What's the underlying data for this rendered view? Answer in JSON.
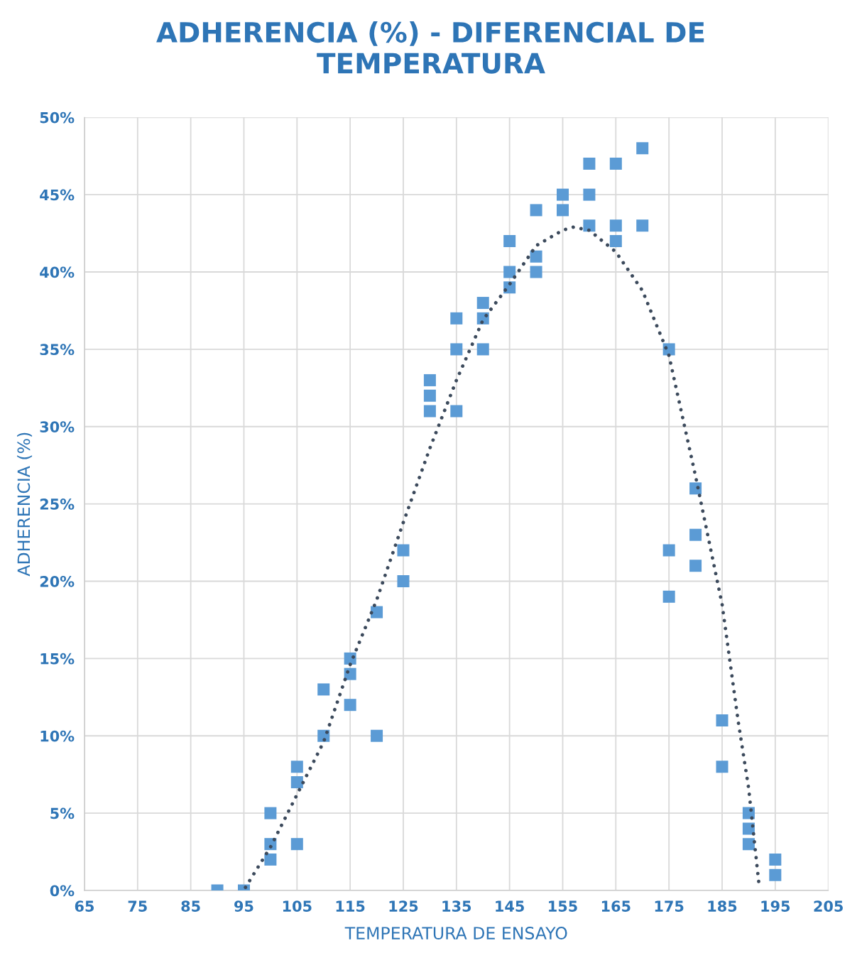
{
  "chart_data": {
    "type": "scatter",
    "title": "ADHERENCIA (%) - DIFERENCIAL DE\nTEMPERATURA",
    "xlabel": "TEMPERATURA DE ENSAYO",
    "ylabel": "ADHERENCIA (%)",
    "xlim": [
      65,
      205
    ],
    "xticks": [
      65,
      75,
      85,
      95,
      105,
      115,
      125,
      135,
      145,
      155,
      165,
      175,
      185,
      195,
      205
    ],
    "ylim": [
      0,
      50
    ],
    "yticks": [
      {
        "value": 0,
        "label": "0%"
      },
      {
        "value": 5,
        "label": "5%"
      },
      {
        "value": 10,
        "label": "10%"
      },
      {
        "value": 15,
        "label": "15%"
      },
      {
        "value": 20,
        "label": "20%"
      },
      {
        "value": 25,
        "label": "25%"
      },
      {
        "value": 30,
        "label": "30%"
      },
      {
        "value": 35,
        "label": "35%"
      },
      {
        "value": 40,
        "label": "40%"
      },
      {
        "value": 45,
        "label": "45%"
      },
      {
        "value": 50,
        "label": "50%"
      }
    ],
    "grid": true,
    "marker": "square",
    "series": [
      {
        "color": "#5b9bd5",
        "x": [
          90,
          95,
          100,
          100,
          100,
          105,
          105,
          105,
          110,
          110,
          115,
          115,
          115,
          120,
          120,
          125,
          125,
          130,
          130,
          130,
          135,
          135,
          135,
          140,
          140,
          140,
          145,
          145,
          145,
          150,
          150,
          150,
          155,
          155,
          160,
          160,
          160,
          165,
          165,
          165,
          170,
          170,
          175,
          175,
          175,
          180,
          180,
          180,
          185,
          185,
          190,
          190,
          190,
          195,
          195
        ],
        "values": [
          0,
          0,
          5,
          3,
          2,
          8,
          7,
          3,
          13,
          10,
          15,
          14,
          12,
          18,
          10,
          22,
          20,
          33,
          32,
          31,
          37,
          35,
          31,
          38,
          37,
          35,
          42,
          40,
          39,
          44,
          41,
          40,
          45,
          44,
          47,
          45,
          43,
          47,
          43,
          42,
          48,
          43,
          35,
          22,
          19,
          26,
          23,
          21,
          11,
          8,
          5,
          4,
          3,
          2,
          1
        ]
      },
      {
        "type": "line",
        "color": "#3c4a5c",
        "marker": "none",
        "line_style": "dotted",
        "x": [
          95.3,
          100,
          105,
          110,
          115,
          120,
          125,
          130,
          135,
          140,
          145,
          150,
          155,
          157,
          160,
          165,
          170,
          175,
          180,
          185,
          188,
          190,
          192
        ],
        "values": [
          0.2,
          2.8,
          6.2,
          9.6,
          14.6,
          18.8,
          23.8,
          28.6,
          33,
          36.9,
          39.2,
          41.7,
          42.7,
          42.9,
          42.7,
          41.3,
          38.8,
          34.6,
          26.8,
          18.5,
          11,
          6.6,
          0.2
        ]
      }
    ]
  }
}
